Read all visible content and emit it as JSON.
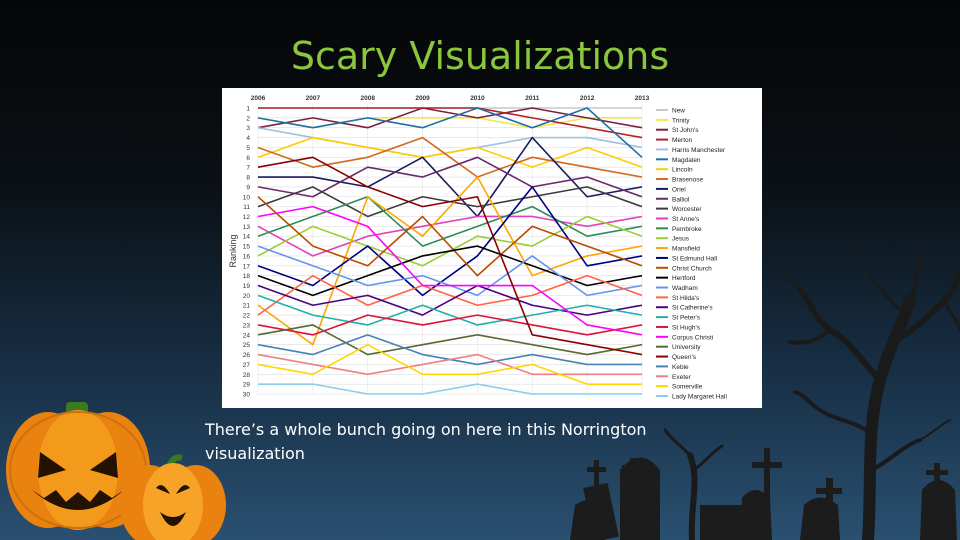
{
  "slide": {
    "title": "Scary Visualizations",
    "caption": "There’s a whole bunch going on here in this Norrington visualization"
  },
  "colors": {
    "title": "#8cc63f",
    "background_top": "#050607",
    "background_bottom": "#2a5070",
    "pumpkin": "#f39a1c"
  },
  "decor": {
    "left": [
      "pumpkin-large-icon",
      "pumpkin-small-icon"
    ],
    "right": [
      "bare-tree-icon",
      "gravestone-icon"
    ]
  },
  "chart_data": {
    "type": "line",
    "title": "",
    "xlabel": "",
    "ylabel": "Ranking",
    "x": [
      "2006",
      "2007",
      "2008",
      "2009",
      "2010",
      "2011",
      "2012",
      "2013"
    ],
    "ylim": [
      1,
      30
    ],
    "y_inverted": true,
    "legend": "right",
    "series": [
      {
        "name": "New",
        "color": "#c8c8c8",
        "values": [
          1,
          1,
          1,
          1,
          1,
          1,
          1,
          1
        ]
      },
      {
        "name": "Trinity",
        "color": "#f5e54a",
        "values": [
          2,
          3,
          2,
          2,
          2,
          3,
          2,
          2
        ]
      },
      {
        "name": "St John's",
        "color": "#7b2142",
        "values": [
          3,
          2,
          3,
          1,
          2,
          1,
          2,
          3
        ]
      },
      {
        "name": "Merton",
        "color": "#b22222",
        "values": [
          1,
          1,
          1,
          1,
          1,
          2,
          3,
          4
        ]
      },
      {
        "name": "Harris Manchester",
        "color": "#9fc0e0",
        "values": [
          3,
          4,
          5,
          6,
          5,
          4,
          4,
          5
        ]
      },
      {
        "name": "Magdalen",
        "color": "#1f6fa8",
        "values": [
          2,
          3,
          2,
          3,
          1,
          3,
          1,
          6
        ]
      },
      {
        "name": "Lincoln",
        "color": "#ffcc00",
        "values": [
          6,
          4,
          5,
          6,
          5,
          7,
          5,
          7
        ]
      },
      {
        "name": "Brasenose",
        "color": "#d2691e",
        "values": [
          5,
          7,
          6,
          4,
          8,
          6,
          7,
          8
        ]
      },
      {
        "name": "Oriel",
        "color": "#1a1a60",
        "values": [
          8,
          8,
          9,
          6,
          12,
          4,
          10,
          9
        ]
      },
      {
        "name": "Balliol",
        "color": "#6b2b6b",
        "values": [
          9,
          10,
          7,
          8,
          6,
          9,
          8,
          10
        ]
      },
      {
        "name": "Worcester",
        "color": "#3c3c3c",
        "values": [
          11,
          9,
          12,
          10,
          11,
          10,
          9,
          11
        ]
      },
      {
        "name": "St Anne's",
        "color": "#e040c0",
        "values": [
          13,
          16,
          14,
          13,
          12,
          12,
          13,
          12
        ]
      },
      {
        "name": "Pembroke",
        "color": "#2e8b57",
        "values": [
          14,
          12,
          10,
          15,
          13,
          11,
          14,
          13
        ]
      },
      {
        "name": "Jesus",
        "color": "#9acd32",
        "values": [
          16,
          13,
          15,
          17,
          14,
          15,
          12,
          14
        ]
      },
      {
        "name": "Mansfield",
        "color": "#ffa500",
        "values": [
          21,
          25,
          10,
          14,
          8,
          18,
          16,
          15
        ]
      },
      {
        "name": "St Edmund Hall",
        "color": "#000080",
        "values": [
          17,
          19,
          15,
          20,
          16,
          9,
          17,
          16
        ]
      },
      {
        "name": "Christ Church",
        "color": "#b84c00",
        "values": [
          10,
          15,
          17,
          12,
          18,
          13,
          15,
          17
        ]
      },
      {
        "name": "Hertford",
        "color": "#000000",
        "values": [
          18,
          20,
          18,
          16,
          15,
          17,
          19,
          18
        ]
      },
      {
        "name": "Wadham",
        "color": "#6495ed",
        "values": [
          15,
          17,
          19,
          18,
          20,
          16,
          20,
          19
        ]
      },
      {
        "name": "St Hilda's",
        "color": "#ff6347",
        "values": [
          22,
          18,
          21,
          19,
          21,
          20,
          18,
          20
        ]
      },
      {
        "name": "St Catherine's",
        "color": "#4b0082",
        "values": [
          19,
          21,
          20,
          22,
          19,
          21,
          22,
          21
        ]
      },
      {
        "name": "St Peter's",
        "color": "#20b2aa",
        "values": [
          20,
          22,
          23,
          21,
          23,
          22,
          21,
          22
        ]
      },
      {
        "name": "St Hugh's",
        "color": "#dc143c",
        "values": [
          23,
          24,
          22,
          23,
          22,
          23,
          24,
          23
        ]
      },
      {
        "name": "Corpus Christi",
        "color": "#ff00ff",
        "values": [
          12,
          11,
          13,
          19,
          19,
          19,
          23,
          24
        ]
      },
      {
        "name": "University",
        "color": "#556b2f",
        "values": [
          24,
          23,
          26,
          25,
          24,
          25,
          26,
          25
        ]
      },
      {
        "name": "Queen's",
        "color": "#8b0000",
        "values": [
          7,
          6,
          9,
          11,
          10,
          24,
          25,
          26
        ]
      },
      {
        "name": "Keble",
        "color": "#4682b4",
        "values": [
          25,
          26,
          24,
          26,
          27,
          26,
          27,
          27
        ]
      },
      {
        "name": "Exeter",
        "color": "#f08080",
        "values": [
          26,
          27,
          28,
          27,
          26,
          28,
          28,
          28
        ]
      },
      {
        "name": "Somerville",
        "color": "#ffd700",
        "values": [
          27,
          28,
          25,
          28,
          28,
          27,
          29,
          29
        ]
      },
      {
        "name": "Lady Margaret Hall",
        "color": "#87ceeb",
        "values": [
          29,
          29,
          30,
          30,
          29,
          30,
          30,
          30
        ]
      }
    ]
  }
}
